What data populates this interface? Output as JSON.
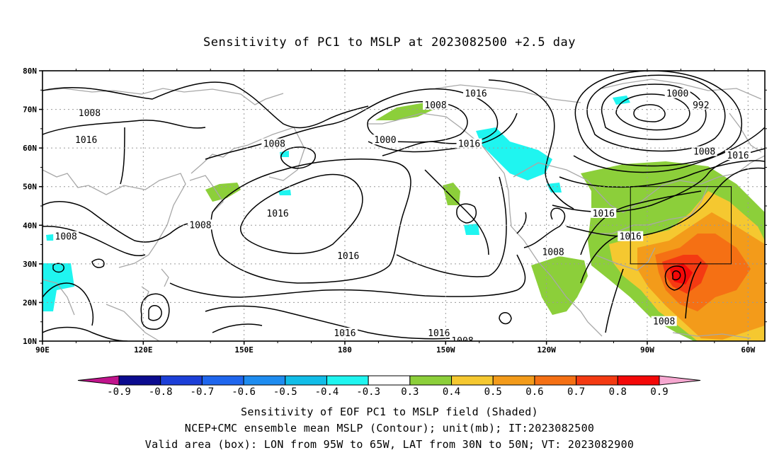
{
  "title": "Sensitivity of PC1 to MSLP at 2023082500 +2.5 day",
  "lat_labels": [
    "80N",
    "70N",
    "60N",
    "50N",
    "40N",
    "30N",
    "20N",
    "10N"
  ],
  "lon_labels": [
    "90E",
    "120E",
    "150E",
    "180",
    "150W",
    "120W",
    "90W",
    "60W"
  ],
  "contour_labels": [
    {
      "text": "1016",
      "lon": -141,
      "lat": 74
    },
    {
      "text": "1008",
      "lon": -153,
      "lat": 71
    },
    {
      "text": "1008",
      "lon": 104,
      "lat": 69
    },
    {
      "text": "1016",
      "lon": 103,
      "lat": 62
    },
    {
      "text": "1000",
      "lon": -168,
      "lat": 62
    },
    {
      "text": "1016",
      "lon": -143,
      "lat": 61
    },
    {
      "text": "1008",
      "lon": 159,
      "lat": 61
    },
    {
      "text": "1000",
      "lon": -81,
      "lat": 74
    },
    {
      "text": "992",
      "lon": -74,
      "lat": 71
    },
    {
      "text": "1008",
      "lon": -73,
      "lat": 59
    },
    {
      "text": "1016",
      "lon": -63,
      "lat": 58
    },
    {
      "text": "1016",
      "lon": 160,
      "lat": 43
    },
    {
      "text": "1008",
      "lon": 97,
      "lat": 37
    },
    {
      "text": "1008",
      "lon": 137,
      "lat": 40
    },
    {
      "text": "1016",
      "lon": -103,
      "lat": 43
    },
    {
      "text": "1016",
      "lon": -95,
      "lat": 37
    },
    {
      "text": "1016",
      "lon": -179,
      "lat": 32
    },
    {
      "text": "1008",
      "lon": -118,
      "lat": 33
    },
    {
      "text": "1016",
      "lon": 180,
      "lat": 12
    },
    {
      "text": "1016",
      "lon": -152,
      "lat": 12
    },
    {
      "text": "1008",
      "lon": -85,
      "lat": 15
    },
    {
      "text": "1008",
      "lon": -145,
      "lat": 10
    }
  ],
  "colorbar": {
    "labels": [
      "-0.9",
      "-0.8",
      "-0.7",
      "-0.6",
      "-0.5",
      "-0.4",
      "-0.3",
      "0.3",
      "0.4",
      "0.5",
      "0.6",
      "0.7",
      "0.8",
      "0.9"
    ],
    "colors": [
      "#0b0b8f",
      "#1c3fd8",
      "#1f66ee",
      "#1e8cf0",
      "#11bde8",
      "#1ff5f0",
      "#ffffff",
      "#8ccf3a",
      "#f5c830",
      "#f39b1a",
      "#f57014",
      "#f43a12",
      "#f40808"
    ],
    "low_color": "#c0148c",
    "high_color": "#f6a7d0"
  },
  "captions": [
    "Sensitivity of EOF PC1 to MSLP field (Shaded)",
    "NCEP+CMC ensemble mean MSLP (Contour); unit(mb); IT:2023082500",
    "Valid area (box): LON from 95W to 65W, LAT from 30N to 50N; VT: 2023082900"
  ]
}
